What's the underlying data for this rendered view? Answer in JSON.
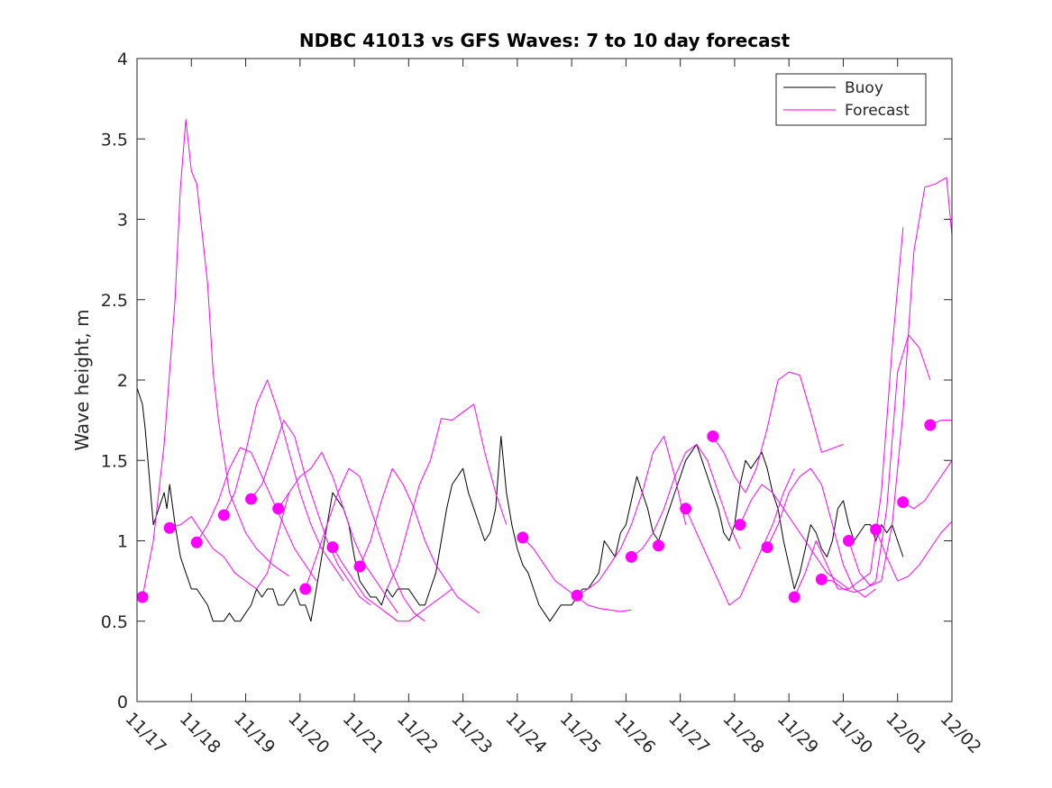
{
  "chart_data": {
    "type": "line",
    "title": "NDBC 41013 vs GFS Waves: 7 to 10 day forecast",
    "xlabel": "",
    "ylabel": "Wave height, m",
    "x_unit": "days since 11/17",
    "xlim": [
      0,
      15
    ],
    "ylim": [
      0,
      4
    ],
    "yticks": [
      0,
      0.5,
      1,
      1.5,
      2,
      2.5,
      3,
      3.5,
      4
    ],
    "ytick_labels": [
      "0",
      "0.5",
      "1",
      "1.5",
      "2",
      "2.5",
      "3",
      "3.5",
      "4"
    ],
    "xticks": [
      0,
      1,
      2,
      3,
      4,
      5,
      6,
      7,
      8,
      9,
      10,
      11,
      12,
      13,
      14,
      15
    ],
    "xtick_labels": [
      "11/17",
      "11/18",
      "11/19",
      "11/20",
      "11/21",
      "11/22",
      "11/23",
      "11/24",
      "11/25",
      "11/26",
      "11/27",
      "11/28",
      "11/29",
      "11/30",
      "12/01",
      "12/02"
    ],
    "legend": {
      "position": "top-right",
      "entries": [
        {
          "label": "Buoy",
          "color": "#000000"
        },
        {
          "label": "Forecast",
          "color": "#ff00ff"
        }
      ]
    },
    "series": [
      {
        "name": "Buoy",
        "color": "#000000",
        "x": [
          0,
          0.05,
          0.1,
          0.15,
          0.2,
          0.25,
          0.3,
          0.4,
          0.5,
          0.55,
          0.6,
          0.7,
          0.8,
          0.9,
          1.0,
          1.1,
          1.2,
          1.3,
          1.4,
          1.5,
          1.6,
          1.7,
          1.8,
          1.9,
          2.0,
          2.1,
          2.2,
          2.3,
          2.4,
          2.5,
          2.6,
          2.7,
          2.8,
          2.9,
          3.0,
          3.1,
          3.2,
          3.3,
          3.4,
          3.5,
          3.6,
          3.7,
          3.8,
          3.9,
          4.0,
          4.1,
          4.2,
          4.3,
          4.4,
          4.5,
          4.6,
          4.7,
          4.8,
          4.9,
          5.0,
          5.1,
          5.2,
          5.3,
          5.4,
          5.5,
          5.6,
          5.7,
          5.8,
          5.9,
          6.0,
          6.1,
          6.2,
          6.3,
          6.4,
          6.5,
          6.6,
          6.7,
          6.8,
          6.9,
          7.0,
          7.1,
          7.2,
          7.3,
          7.4,
          7.5,
          7.6,
          7.7,
          7.8,
          7.9,
          8.0,
          8.1,
          8.2,
          8.3,
          8.4,
          8.5,
          8.6,
          8.7,
          8.8,
          8.9,
          9.0,
          9.1,
          9.2,
          9.3,
          9.4,
          9.5,
          9.6,
          9.7,
          9.8,
          9.9,
          10.0,
          10.1,
          10.2,
          10.3,
          10.4,
          10.5,
          10.6,
          10.7,
          10.8,
          10.9,
          11.0,
          11.1,
          11.2,
          11.3,
          11.4,
          11.5,
          11.6,
          11.7,
          11.8,
          11.9,
          12.0,
          12.1,
          12.2,
          12.3,
          12.4,
          12.5,
          12.6,
          12.7,
          12.8,
          12.9,
          13.0,
          13.1,
          13.2,
          13.3,
          13.4,
          13.5,
          13.6,
          13.7,
          13.8,
          13.9,
          14.0,
          14.1
        ],
        "values": [
          1.95,
          1.9,
          1.85,
          1.7,
          1.5,
          1.3,
          1.1,
          1.2,
          1.3,
          1.2,
          1.35,
          1.1,
          0.9,
          0.8,
          0.7,
          0.7,
          0.65,
          0.6,
          0.5,
          0.5,
          0.5,
          0.55,
          0.5,
          0.5,
          0.55,
          0.6,
          0.7,
          0.65,
          0.7,
          0.7,
          0.6,
          0.6,
          0.65,
          0.7,
          0.6,
          0.6,
          0.5,
          0.7,
          0.9,
          1.1,
          1.3,
          1.25,
          1.2,
          1.1,
          0.9,
          0.75,
          0.7,
          0.65,
          0.65,
          0.6,
          0.7,
          0.65,
          0.7,
          0.7,
          0.7,
          0.65,
          0.6,
          0.6,
          0.7,
          0.8,
          1.0,
          1.2,
          1.35,
          1.4,
          1.45,
          1.3,
          1.2,
          1.1,
          1.0,
          1.05,
          1.2,
          1.65,
          1.3,
          1.1,
          0.95,
          0.85,
          0.8,
          0.7,
          0.6,
          0.55,
          0.5,
          0.55,
          0.6,
          0.6,
          0.6,
          0.65,
          0.7,
          0.7,
          0.75,
          0.8,
          1.0,
          0.95,
          0.9,
          1.05,
          1.1,
          1.25,
          1.4,
          1.3,
          1.2,
          1.05,
          1.0,
          1.1,
          1.2,
          1.3,
          1.4,
          1.5,
          1.55,
          1.6,
          1.5,
          1.4,
          1.3,
          1.2,
          1.05,
          1.0,
          1.1,
          1.35,
          1.5,
          1.45,
          1.5,
          1.55,
          1.45,
          1.3,
          1.2,
          1.0,
          0.85,
          0.7,
          0.8,
          0.95,
          1.1,
          1.05,
          0.95,
          0.9,
          1.0,
          1.2,
          1.25,
          1.1,
          1.0,
          1.05,
          1.1,
          1.1,
          1.0,
          1.1,
          1.05,
          1.1,
          1.0,
          0.9
        ]
      },
      {
        "name": "Forecast 1",
        "color": "#ff00ff",
        "x": [
          0.1,
          0.3,
          0.5,
          0.7,
          0.8,
          0.9,
          1.0,
          1.1,
          1.3,
          1.4,
          1.5,
          1.7,
          2.0,
          2.2,
          2.5,
          2.8
        ],
        "values": [
          0.65,
          1.0,
          1.6,
          2.5,
          3.2,
          3.62,
          3.3,
          3.22,
          2.6,
          2.05,
          1.75,
          1.3,
          1.05,
          0.95,
          0.85,
          0.78
        ]
      },
      {
        "name": "Forecast 2",
        "color": "#ff00ff",
        "x": [
          0.6,
          0.8,
          1.0,
          1.2,
          1.4,
          1.6,
          1.8,
          2.0,
          2.2,
          2.4,
          2.6,
          2.8
        ],
        "values": [
          1.08,
          1.1,
          1.15,
          1.05,
          0.95,
          0.9,
          0.8,
          0.75,
          0.7,
          0.8,
          1.05,
          1.3
        ]
      },
      {
        "name": "Forecast 3",
        "color": "#ff00ff",
        "x": [
          1.1,
          1.3,
          1.5,
          1.7,
          1.9,
          2.1,
          2.3,
          2.5,
          2.7,
          2.9,
          3.1,
          3.3
        ],
        "values": [
          0.99,
          1.1,
          1.25,
          1.45,
          1.58,
          1.55,
          1.4,
          1.25,
          1.1,
          0.95,
          0.85,
          0.75
        ]
      },
      {
        "name": "Forecast 4",
        "color": "#ff00ff",
        "x": [
          1.6,
          1.8,
          2.0,
          2.2,
          2.4,
          2.6,
          2.8,
          3.0,
          3.2,
          3.4,
          3.6,
          3.8
        ],
        "values": [
          1.16,
          1.3,
          1.55,
          1.85,
          2.0,
          1.8,
          1.55,
          1.3,
          1.1,
          0.95,
          0.85,
          0.75
        ]
      },
      {
        "name": "Forecast 5",
        "color": "#ff00ff",
        "x": [
          2.1,
          2.3,
          2.5,
          2.7,
          2.9,
          3.1,
          3.3,
          3.5,
          3.7,
          3.9,
          4.1,
          4.3
        ],
        "values": [
          1.26,
          1.35,
          1.55,
          1.75,
          1.65,
          1.4,
          1.2,
          1.0,
          0.85,
          0.75,
          0.65,
          0.6
        ]
      },
      {
        "name": "Forecast 6",
        "color": "#ff00ff",
        "x": [
          2.6,
          2.8,
          3.0,
          3.2,
          3.4,
          3.6,
          3.8,
          4.0,
          4.2,
          4.4,
          4.6,
          4.8
        ],
        "values": [
          1.2,
          1.3,
          1.4,
          1.45,
          1.55,
          1.4,
          1.2,
          1.0,
          0.85,
          0.75,
          0.65,
          0.55
        ]
      },
      {
        "name": "Forecast 7",
        "color": "#ff00ff",
        "x": [
          3.1,
          3.3,
          3.5,
          3.7,
          3.9,
          4.1,
          4.3,
          4.5,
          4.7,
          4.9,
          5.1,
          5.3
        ],
        "values": [
          0.7,
          0.9,
          1.1,
          1.3,
          1.45,
          1.4,
          1.2,
          1.0,
          0.8,
          0.65,
          0.55,
          0.5
        ]
      },
      {
        "name": "Forecast 8",
        "color": "#ff00ff",
        "x": [
          3.6,
          3.8,
          4.0,
          4.2,
          4.4,
          4.6,
          4.8,
          5.0,
          5.2,
          5.4,
          5.6,
          5.8
        ],
        "values": [
          0.96,
          0.85,
          0.75,
          0.65,
          0.6,
          0.55,
          0.5,
          0.5,
          0.55,
          0.6,
          0.65,
          0.7
        ]
      },
      {
        "name": "Forecast 9",
        "color": "#ff00ff",
        "x": [
          4.1,
          4.3,
          4.5,
          4.7,
          4.9,
          5.1,
          5.3,
          5.5,
          5.7,
          5.9,
          6.1,
          6.3
        ],
        "values": [
          0.84,
          1.0,
          1.25,
          1.45,
          1.35,
          1.2,
          1.0,
          0.85,
          0.75,
          0.65,
          0.6,
          0.55
        ]
      },
      {
        "name": "Forecast 10",
        "color": "#ff00ff",
        "x": [
          4.6,
          4.8,
          5.0,
          5.2,
          5.4,
          5.6,
          5.8,
          6.0,
          6.2,
          6.4,
          6.6,
          6.8
        ],
        "values": [
          0.7,
          0.85,
          1.1,
          1.35,
          1.5,
          1.76,
          1.75,
          1.8,
          1.85,
          1.55,
          1.3,
          1.1
        ]
      },
      {
        "name": "Forecast 11",
        "color": "#ff00ff",
        "x": [
          7.1,
          7.3,
          7.5,
          7.7,
          7.9,
          8.1,
          8.3,
          8.5,
          8.7,
          8.9,
          9.1
        ],
        "values": [
          1.02,
          0.95,
          0.85,
          0.75,
          0.7,
          0.65,
          0.6,
          0.58,
          0.57,
          0.56,
          0.57
        ]
      },
      {
        "name": "Forecast 12",
        "color": "#ff00ff",
        "x": [
          8.1,
          8.3,
          8.5,
          8.7,
          8.9,
          9.1,
          9.3,
          9.5,
          9.7,
          9.9,
          10.1
        ],
        "values": [
          0.66,
          0.7,
          0.75,
          0.85,
          0.95,
          1.1,
          1.3,
          1.55,
          1.65,
          1.4,
          1.1
        ]
      },
      {
        "name": "Forecast 13",
        "color": "#ff00ff",
        "x": [
          9.1,
          9.3,
          9.5,
          9.7,
          9.9,
          10.1,
          10.3,
          10.5,
          10.7,
          10.9,
          11.1
        ],
        "values": [
          0.9,
          0.95,
          1.05,
          1.2,
          1.4,
          1.55,
          1.6,
          1.5,
          1.3,
          1.1,
          0.95
        ]
      },
      {
        "name": "Forecast 14",
        "color": "#ff00ff",
        "x": [
          10.1,
          10.3,
          10.5,
          10.7,
          10.9,
          11.1,
          11.3,
          11.5,
          11.7,
          11.9,
          12.1
        ],
        "values": [
          1.2,
          1.05,
          0.9,
          0.75,
          0.6,
          0.65,
          0.8,
          0.95,
          1.1,
          1.3,
          1.45
        ]
      },
      {
        "name": "Forecast 15",
        "color": "#ff00ff",
        "x": [
          10.6,
          10.8,
          11.0,
          11.2,
          11.4,
          11.6,
          11.8,
          12.0,
          12.2,
          12.4,
          12.6,
          13.0
        ],
        "values": [
          1.65,
          1.55,
          1.4,
          1.3,
          1.45,
          1.7,
          2.0,
          2.05,
          2.03,
          1.8,
          1.55,
          1.6
        ]
      },
      {
        "name": "Forecast 16",
        "color": "#ff00ff",
        "x": [
          11.1,
          11.3,
          11.5,
          11.7,
          11.9,
          12.1,
          12.3,
          12.5,
          12.7,
          12.9,
          13.1
        ],
        "values": [
          1.1,
          1.25,
          1.35,
          1.3,
          1.2,
          1.1,
          1.0,
          0.9,
          0.8,
          0.75,
          0.7
        ]
      },
      {
        "name": "Forecast 17",
        "color": "#ff00ff",
        "x": [
          11.6,
          11.8,
          12.0,
          12.2,
          12.4,
          12.6,
          12.8,
          13.0,
          13.2,
          13.4,
          13.6
        ],
        "values": [
          0.96,
          1.1,
          1.3,
          1.4,
          1.45,
          1.35,
          1.1,
          0.85,
          0.7,
          0.65,
          0.7
        ]
      },
      {
        "name": "Forecast 18",
        "color": "#ff00ff",
        "x": [
          12.1,
          12.3,
          12.5,
          12.7,
          12.9,
          13.1,
          13.3,
          13.5,
          13.7,
          13.9,
          14.1
        ],
        "values": [
          0.65,
          0.8,
          1.0,
          0.85,
          0.7,
          0.7,
          0.75,
          0.8,
          1.3,
          2.2,
          2.95
        ]
      },
      {
        "name": "Forecast 19",
        "color": "#ff00ff",
        "x": [
          12.6,
          12.8,
          13.0,
          13.2,
          13.4,
          13.6,
          13.8,
          14.0,
          14.2,
          14.4,
          14.6
        ],
        "values": [
          0.76,
          0.75,
          0.7,
          0.68,
          0.7,
          0.75,
          1.2,
          2.05,
          2.28,
          2.2,
          2.0
        ]
      },
      {
        "name": "Forecast 20",
        "color": "#ff00ff",
        "x": [
          13.1,
          13.3,
          13.5,
          13.7,
          13.9,
          14.1,
          14.3,
          14.5,
          14.7,
          14.9,
          15.0
        ],
        "values": [
          1.0,
          0.8,
          0.72,
          0.75,
          1.1,
          1.8,
          2.8,
          3.2,
          3.22,
          3.26,
          2.9
        ]
      },
      {
        "name": "Forecast 21",
        "color": "#ff00ff",
        "x": [
          13.6,
          13.8,
          14.0,
          14.2,
          14.4,
          14.6,
          14.8,
          15.0
        ],
        "values": [
          1.07,
          0.9,
          0.75,
          0.78,
          0.85,
          0.95,
          1.05,
          1.12
        ]
      },
      {
        "name": "Forecast 22",
        "color": "#ff00ff",
        "x": [
          14.1,
          14.3,
          14.5,
          14.7,
          14.9,
          15.0
        ],
        "values": [
          1.24,
          1.2,
          1.25,
          1.35,
          1.45,
          1.5
        ]
      },
      {
        "name": "Forecast 23",
        "color": "#ff00ff",
        "x": [
          14.6,
          14.8,
          15.0
        ],
        "values": [
          1.72,
          1.75,
          1.75
        ]
      }
    ],
    "markers": {
      "name": "Forecast init",
      "color": "#ff00ff",
      "x": [
        0.1,
        0.6,
        1.1,
        1.6,
        2.1,
        2.6,
        3.1,
        3.6,
        4.1,
        7.1,
        8.1,
        9.1,
        9.6,
        10.1,
        10.6,
        11.1,
        11.6,
        12.1,
        12.6,
        13.1,
        13.6,
        14.1,
        14.6
      ],
      "values": [
        0.65,
        1.08,
        0.99,
        1.16,
        1.26,
        1.2,
        0.7,
        0.96,
        0.84,
        1.02,
        0.66,
        0.9,
        0.97,
        1.2,
        1.65,
        1.1,
        0.96,
        0.65,
        0.76,
        1.0,
        1.07,
        1.24,
        1.72
      ]
    }
  }
}
